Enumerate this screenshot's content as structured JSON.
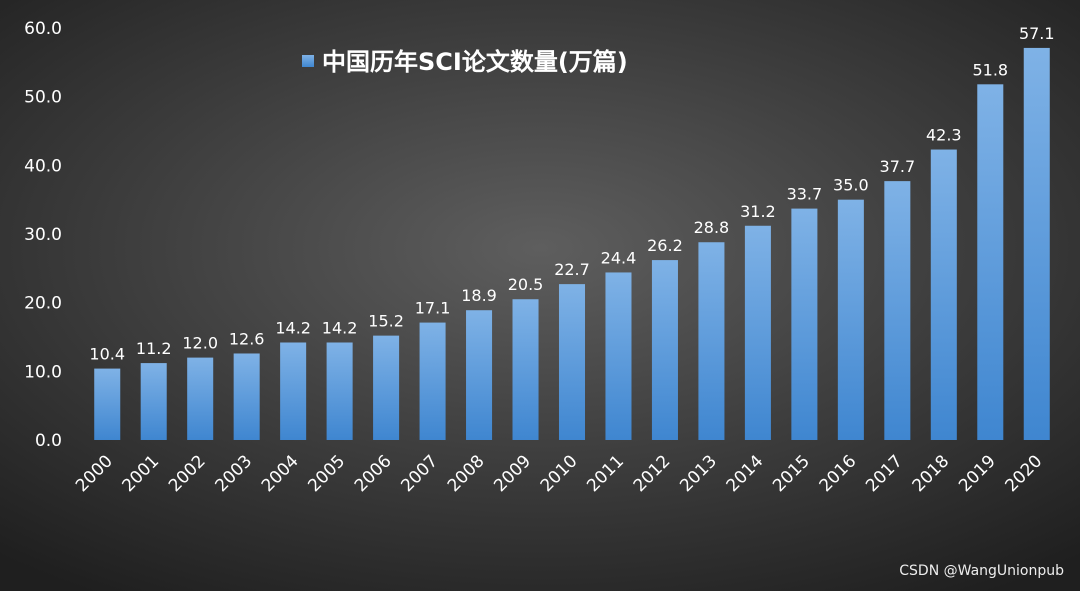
{
  "chart_data": {
    "type": "bar",
    "categories": [
      "2000",
      "2001",
      "2002",
      "2003",
      "2004",
      "2005",
      "2006",
      "2007",
      "2008",
      "2009",
      "2010",
      "2011",
      "2012",
      "2013",
      "2014",
      "2015",
      "2016",
      "2017",
      "2018",
      "2019",
      "2020"
    ],
    "series": [
      {
        "name": "中国历年SCI论文数量(万篇)",
        "values": [
          10.4,
          11.2,
          12.0,
          12.6,
          14.2,
          14.2,
          15.2,
          17.1,
          18.9,
          20.5,
          22.7,
          24.4,
          26.2,
          28.8,
          31.2,
          33.7,
          35.0,
          37.7,
          42.3,
          51.8,
          57.1
        ],
        "color": "#5b9bd5"
      }
    ],
    "yticks": [
      "0.0",
      "10.0",
      "20.0",
      "30.0",
      "40.0",
      "50.0",
      "60.0"
    ],
    "ylim": [
      0,
      60
    ],
    "legend_position": "top-left",
    "grid": false
  },
  "watermark": "CSDN @WangUnionpub"
}
